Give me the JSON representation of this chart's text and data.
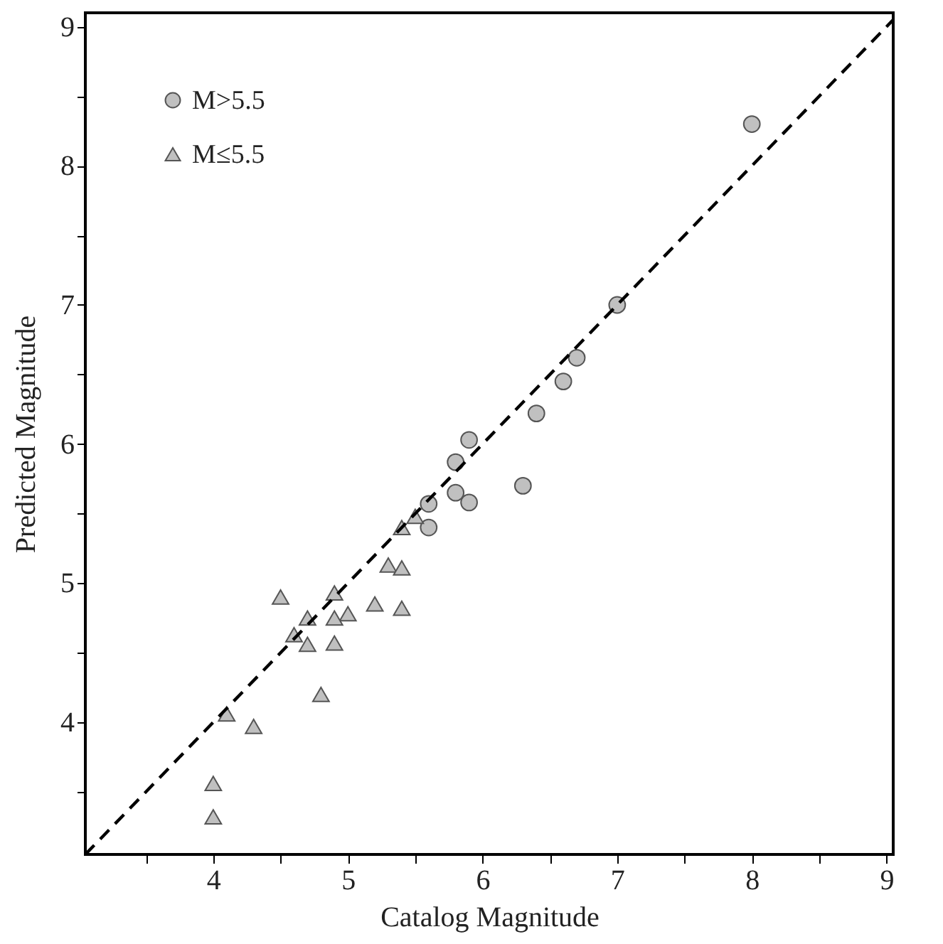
{
  "chart_data": {
    "type": "scatter",
    "xlabel": "Catalog Magnitude",
    "ylabel": "Predicted Magnitude",
    "xlim": [
      3.05,
      9.05
    ],
    "ylim": [
      3.05,
      9.1
    ],
    "xticks": [
      {
        "value": 3.5,
        "label": null
      },
      4,
      {
        "value": 4.5,
        "label": null
      },
      5,
      {
        "value": 5.5,
        "label": null
      },
      6,
      {
        "value": 6.5,
        "label": null
      },
      7,
      {
        "value": 7.5,
        "label": null
      },
      8,
      {
        "value": 8.5,
        "label": null
      },
      9
    ],
    "yticks": [
      {
        "value": 3.5,
        "label": null
      },
      4,
      {
        "value": 4.5,
        "label": null
      },
      5,
      {
        "value": 5.5,
        "label": null
      },
      6,
      {
        "value": 6.5,
        "label": null
      },
      7,
      {
        "value": 7.5,
        "label": null
      },
      8,
      {
        "value": 8.5,
        "label": null
      },
      9
    ],
    "grid": false,
    "legend": "top left",
    "series": [
      {
        "name": "M>5.5",
        "type": "scatter",
        "marker": "circle",
        "color": "#c0c0c0",
        "x": [
          8,
          7,
          6.7,
          6.6,
          6.4,
          6.3,
          5.9,
          5.8,
          5.8,
          5.9,
          5.6,
          5.6
        ],
        "values": [
          8.3,
          7.0,
          6.62,
          6.45,
          6.22,
          5.7,
          6.03,
          5.87,
          5.65,
          5.58,
          5.57,
          5.4
        ]
      },
      {
        "name": "M≤5.5",
        "type": "scatter",
        "marker": "triangle",
        "color": "#c0c0c0",
        "x": [
          5.5,
          5.4,
          5.3,
          5.4,
          5.4,
          5.2,
          5.0,
          4.9,
          4.9,
          4.9,
          4.5,
          4.7,
          4.6,
          4.7,
          4.8,
          4.1,
          4.3,
          4.0,
          4.0
        ],
        "values": [
          5.48,
          5.4,
          5.13,
          5.11,
          4.82,
          4.85,
          4.78,
          4.93,
          4.75,
          4.57,
          4.9,
          4.75,
          4.63,
          4.56,
          4.2,
          4.06,
          3.97,
          3.56,
          3.32
        ]
      },
      {
        "type": "line",
        "line_style": "dashed",
        "color": "#000000",
        "x": [
          3.05,
          9.05
        ],
        "values": [
          3.05,
          9.05
        ]
      }
    ]
  }
}
